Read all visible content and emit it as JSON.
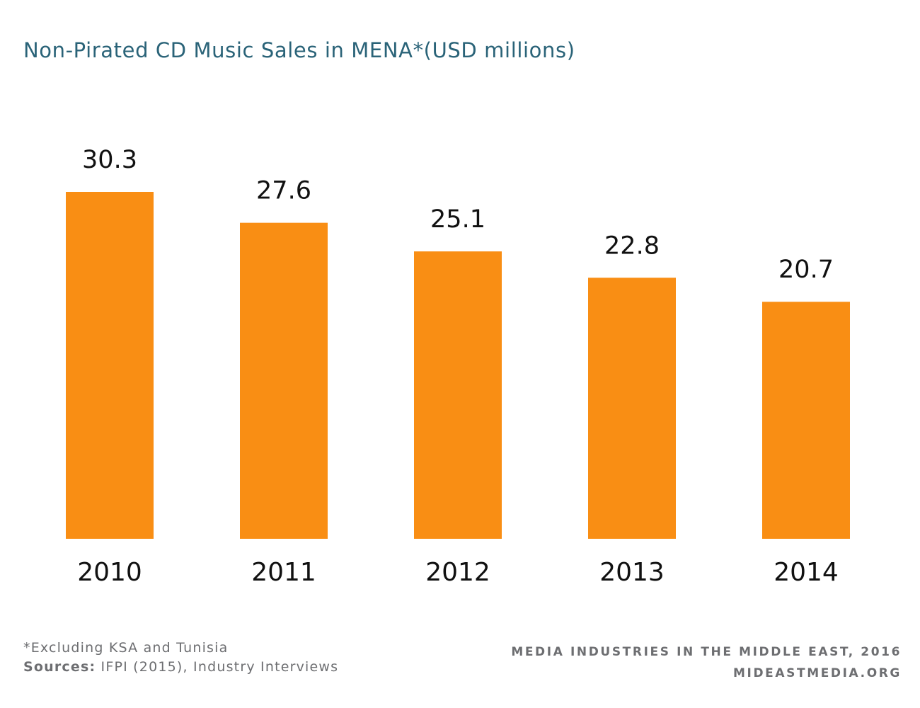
{
  "chart_data": {
    "type": "bar",
    "title": "Non-Pirated CD Music Sales in MENA*(USD millions)",
    "categories": [
      "2010",
      "2011",
      "2012",
      "2013",
      "2014"
    ],
    "values": [
      30.3,
      27.6,
      25.1,
      22.8,
      20.7
    ],
    "value_labels": [
      "30.3",
      "27.6",
      "25.1",
      "22.8",
      "20.7"
    ],
    "xlabel": "",
    "ylabel": "",
    "ylim": [
      0,
      30.3
    ],
    "grid": false,
    "legend": "none",
    "bar_color": "#f98e14"
  },
  "footnote": {
    "note": "*Excluding KSA and Tunisia",
    "sources_label": "Sources:",
    "sources_text": " IFPI (2015), Industry Interviews"
  },
  "credit": {
    "line1": "MEDIA INDUSTRIES IN THE MIDDLE EAST, 2016",
    "line2": "MIDEASTMEDIA.ORG"
  }
}
